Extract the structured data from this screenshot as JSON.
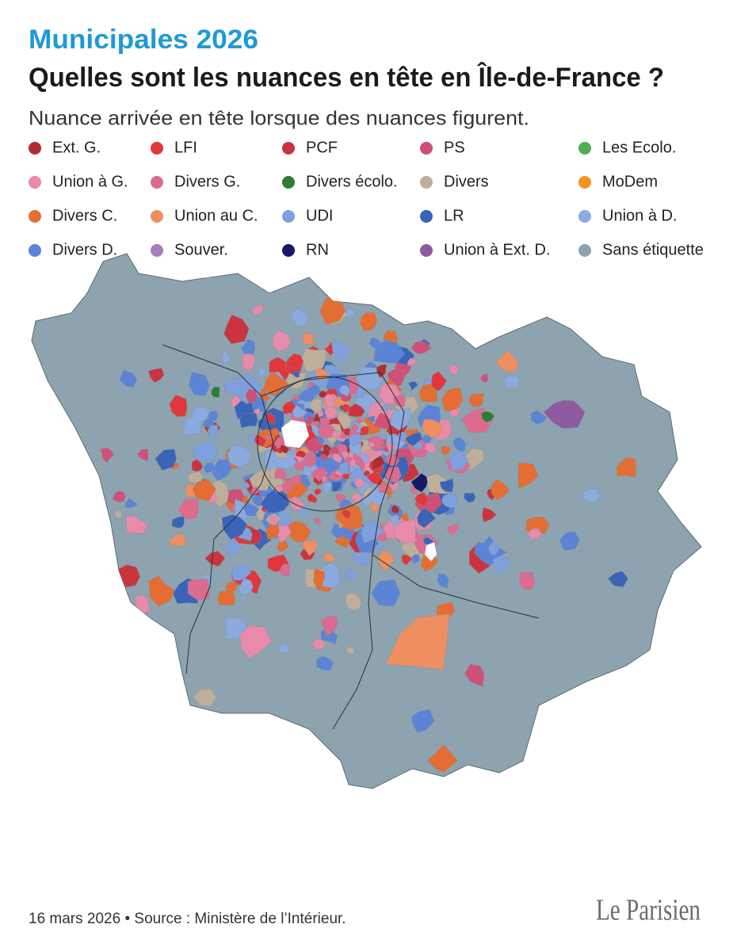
{
  "header": {
    "kicker": "Municipales 2026",
    "title": "Quelles sont les nuances en tête en Île-de-France ?",
    "subtitle": "Nuance arrivée en tête lorsque des nuances figurent."
  },
  "legend": {
    "items": [
      {
        "label": "Ext. G.",
        "color": "#b02c32"
      },
      {
        "label": "LFI",
        "color": "#e0363c"
      },
      {
        "label": "PCF",
        "color": "#c9343f"
      },
      {
        "label": "PS",
        "color": "#cf5076"
      },
      {
        "label": "Les Ecolo.",
        "color": "#4caf50"
      },
      {
        "label": "Union à G.",
        "color": "#e88aa9"
      },
      {
        "label": "Divers G.",
        "color": "#dc6b90"
      },
      {
        "label": "Divers écolo.",
        "color": "#2e7d32"
      },
      {
        "label": "Divers",
        "color": "#bfae99"
      },
      {
        "label": "MoDem",
        "color": "#f29420"
      },
      {
        "label": "Divers C.",
        "color": "#e46d33"
      },
      {
        "label": "Union au C.",
        "color": "#ef8f5f"
      },
      {
        "label": "UDI",
        "color": "#7fa0dd"
      },
      {
        "label": "LR",
        "color": "#3b64b8"
      },
      {
        "label": "Union à D.",
        "color": "#8aaae0"
      },
      {
        "label": "Divers D.",
        "color": "#5b84d6"
      },
      {
        "label": "Souver.",
        "color": "#a67dbd"
      },
      {
        "label": "RN",
        "color": "#151a66"
      },
      {
        "label": "Union à Ext. D.",
        "color": "#8e5aa0"
      },
      {
        "label": "Sans étiquette",
        "color": "#8da3b0"
      }
    ]
  },
  "footer": {
    "source": "16 mars 2026 • Source : Ministère de l’Intérieur.",
    "logo": "Le Parisien"
  }
}
